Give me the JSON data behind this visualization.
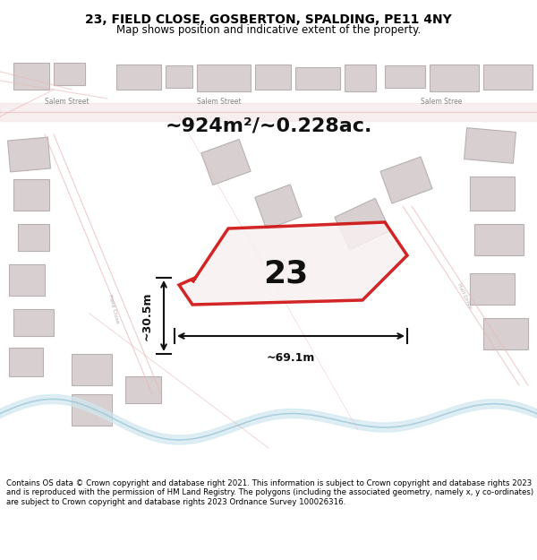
{
  "title_line1": "23, FIELD CLOSE, GOSBERTON, SPALDING, PE11 4NY",
  "title_line2": "Map shows position and indicative extent of the property.",
  "footer_text": "Contains OS data © Crown copyright and database right 2021. This information is subject to Crown copyright and database rights 2023 and is reproduced with the permission of HM Land Registry. The polygons (including the associated geometry, namely x, y co-ordinates) are subject to Crown copyright and database rights 2023 Ordnance Survey 100026316.",
  "area_text": "~924m²/~0.228ac.",
  "number_label": "23",
  "dim_width": "~69.1m",
  "dim_height": "~30.5m",
  "map_bg": "#f5f0f0",
  "road_color": "#e8b8b8",
  "building_color": "#d8d0d0",
  "highlight_color": "#cc0000",
  "dim_color": "#111111",
  "title_bg": "#ffffff",
  "footer_bg": "#ffffff",
  "map_area_color": "#f0e8e8"
}
